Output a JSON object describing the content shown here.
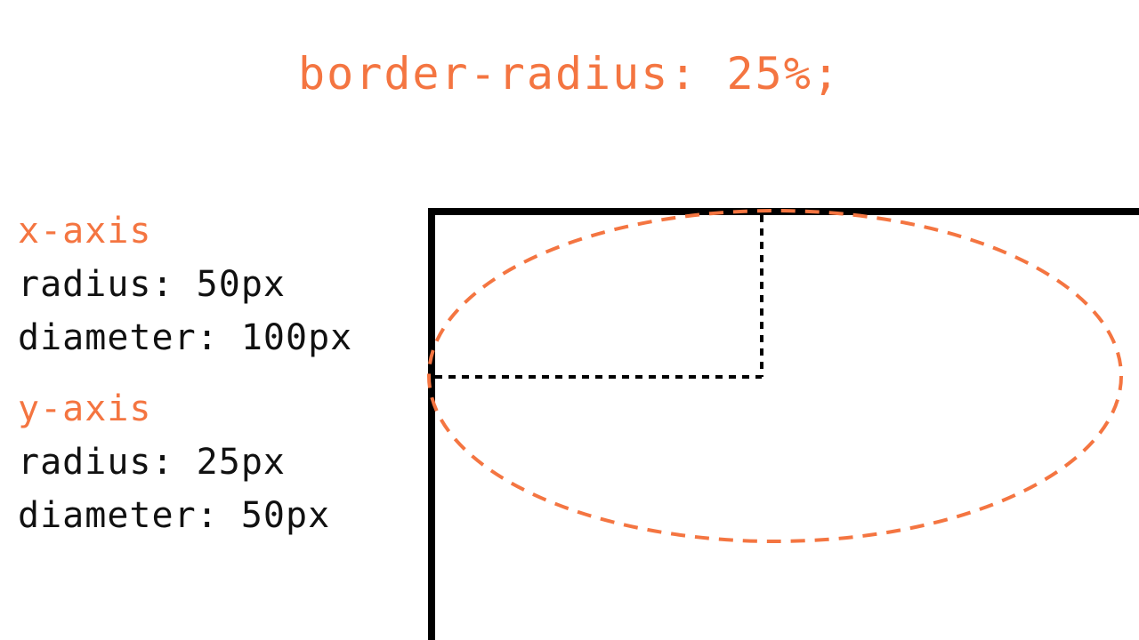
{
  "title": "border-radius: 25%;",
  "x_axis": {
    "heading": "x-axis",
    "radius": "radius: 50px",
    "diameter": "diameter: 100px"
  },
  "y_axis": {
    "heading": "y-axis",
    "radius": "radius: 25px",
    "diameter": "diameter: 50px"
  },
  "colors": {
    "accent": "#f47541",
    "text": "#111111",
    "box_border": "#000000"
  }
}
